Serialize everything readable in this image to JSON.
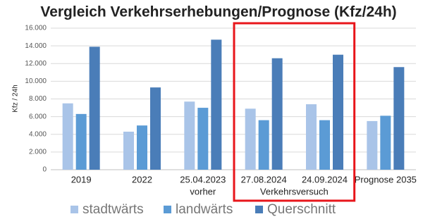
{
  "chart_data": {
    "type": "bar",
    "title": "Vergleich Verkehrserhebungen/Prognose (Kfz/24h)",
    "y_label": "Kfz / 24h",
    "categories": [
      "2019",
      "2022",
      "25.04.2023",
      "27.08.2024",
      "24.09.2024",
      "Prognose 2035"
    ],
    "series": [
      {
        "name": "stadtwärts",
        "color": "#a9c4e8",
        "values": [
          7500,
          4300,
          7700,
          6900,
          7400,
          5500
        ]
      },
      {
        "name": "landwärts",
        "color": "#5b9bd5",
        "values": [
          6300,
          5000,
          7000,
          5600,
          5600,
          6100
        ]
      },
      {
        "name": "Querschnitt",
        "color": "#4a7db8",
        "values": [
          13900,
          9300,
          14700,
          12600,
          13000,
          11600
        ]
      }
    ],
    "annotations": [
      {
        "text": "vorher",
        "categories": [
          2
        ]
      },
      {
        "text": "Verkehrsversuch",
        "categories": [
          3,
          4
        ]
      }
    ],
    "highlight": {
      "categories": [
        3,
        4
      ],
      "color": "#e8161b"
    },
    "ylim": [
      0,
      16000
    ],
    "yticks": [
      0,
      {
        "value": 2000,
        "label": "2.000"
      },
      {
        "value": 4000,
        "label": "4.000"
      },
      {
        "value": 6000,
        "label": "6.000"
      },
      {
        "value": 8000,
        "label": "8.000"
      },
      {
        "value": 10000,
        "label": "10.000"
      },
      {
        "value": 12000,
        "label": "12.000"
      },
      {
        "value": 14000,
        "label": "14.000"
      },
      {
        "value": 16000,
        "label": "16.000"
      }
    ],
    "grid": true,
    "legend": "bottom"
  }
}
